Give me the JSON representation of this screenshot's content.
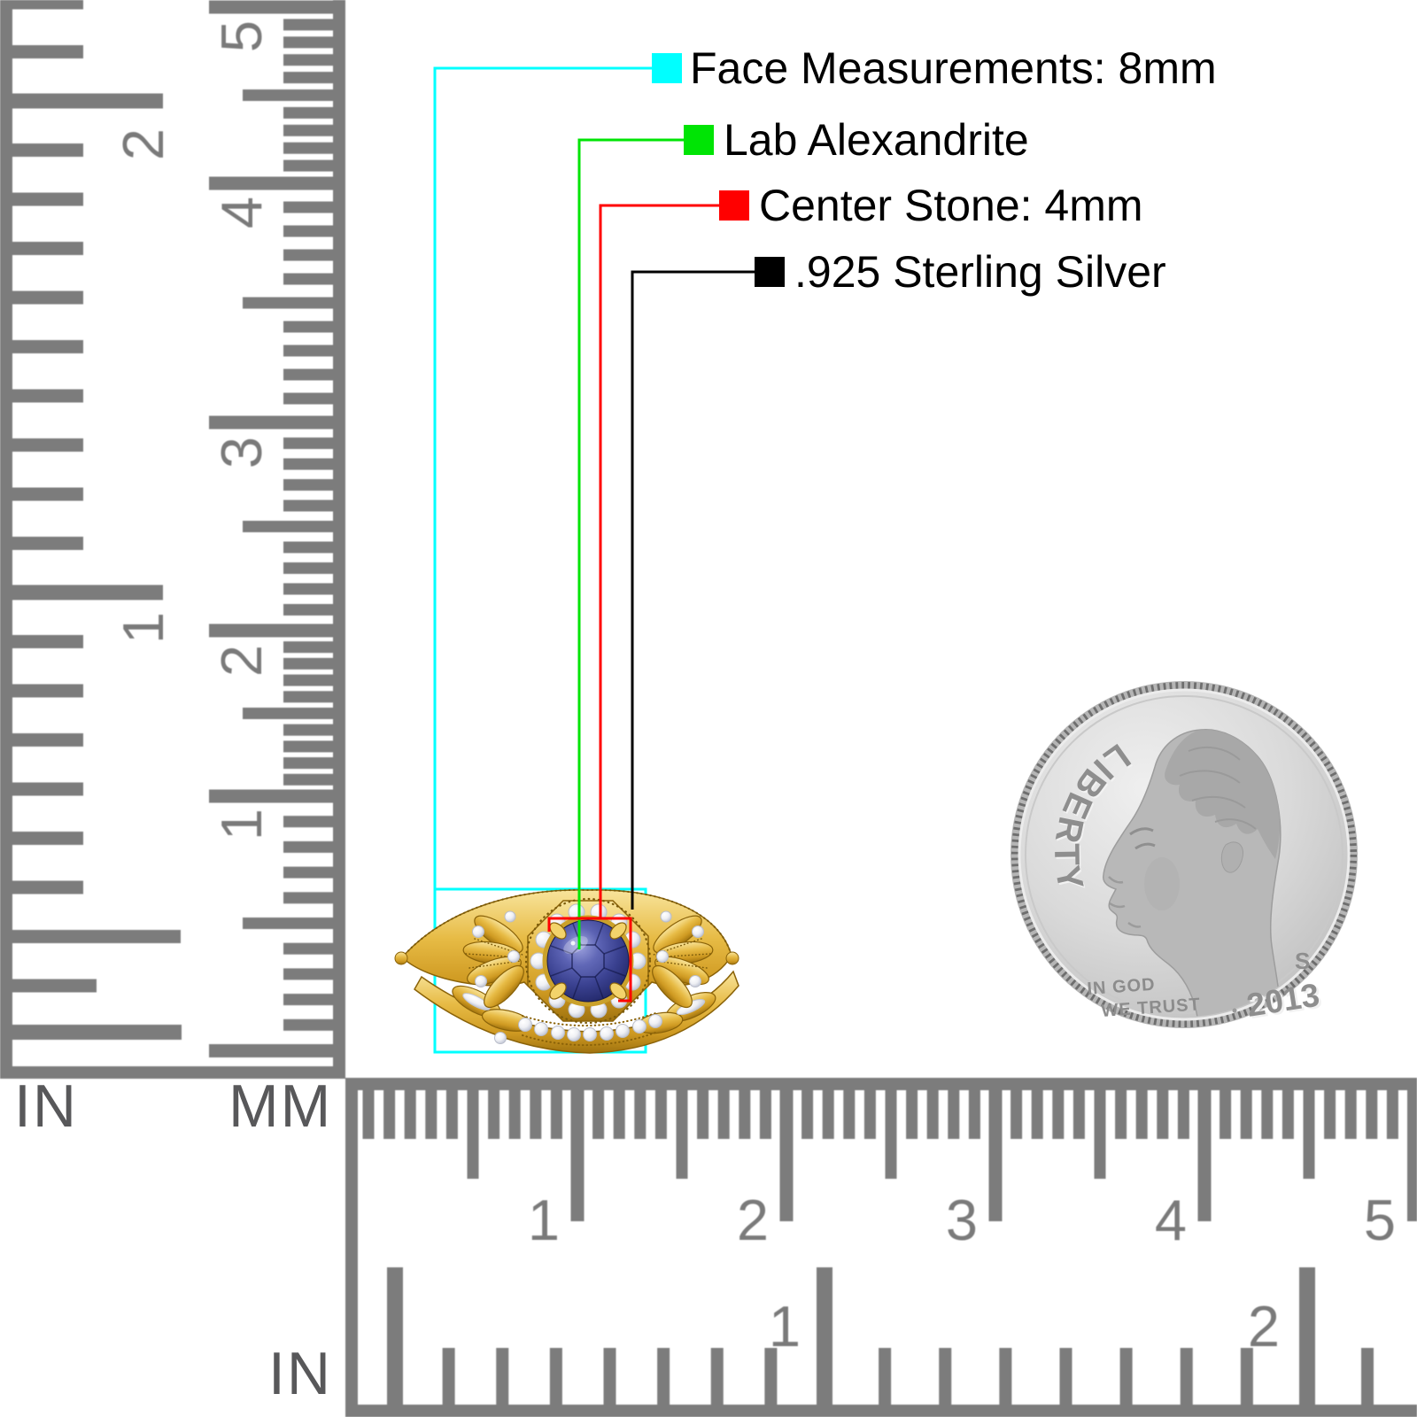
{
  "annotations": {
    "face": {
      "label": "Face Measurements: 8mm",
      "color": "#00ffff"
    },
    "stone": {
      "label": "Lab Alexandrite",
      "color": "#00e405"
    },
    "center_stone": {
      "label": "Center Stone: 4mm",
      "color": "#ff0000"
    },
    "metal": {
      "label": ".925 Sterling Silver",
      "color": "#000000"
    }
  },
  "vertical_ruler": {
    "left_unit": "IN",
    "right_unit": "MM",
    "inch_numbers": [
      "2",
      "1"
    ],
    "mm_numbers": [
      "5",
      "4",
      "3",
      "2",
      "1"
    ]
  },
  "horizontal_ruler": {
    "unit": "IN",
    "mm_numbers": [
      "1",
      "2",
      "3",
      "4",
      "5"
    ],
    "inch_numbers": [
      "1",
      "2"
    ]
  },
  "coin": {
    "legend": "LIBERTY",
    "motto_line1": "IN GOD",
    "motto_line2": "WE TRUST",
    "year": "2013",
    "mint_mark": "S"
  },
  "colors": {
    "ruler_tick": "#7c7c7c",
    "ruler_number": "#7a7a7a",
    "unit_label": "#58585a",
    "annotation_text": "#000000",
    "gold": "#e2b33c",
    "stone_blue": "#3d4390",
    "diamond": "#f3f4f7",
    "coin_face": "#d7d7d7"
  }
}
